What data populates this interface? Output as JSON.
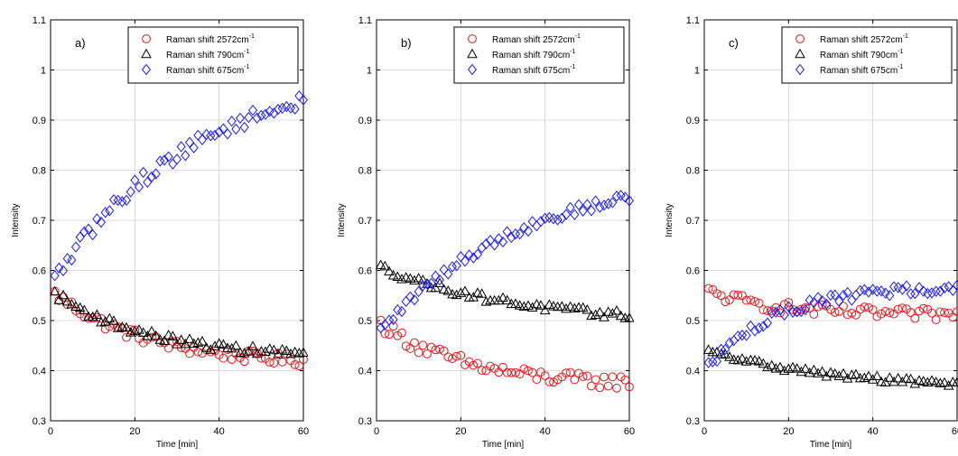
{
  "chart_data": [
    {
      "type": "scatter",
      "panel_label": "a)",
      "xlabel": "Time [min]",
      "ylabel": "Intensity",
      "xlim": [
        0,
        60
      ],
      "ylim": [
        0.3,
        1.1
      ],
      "xticks": [
        0,
        20,
        40,
        60
      ],
      "yticks": [
        0.3,
        0.4,
        0.5,
        0.6,
        0.7,
        0.8,
        0.9,
        1,
        1.1
      ],
      "xtick_labels": [
        "0",
        "20",
        "40",
        "60"
      ],
      "ytick_labels": [
        "0.3",
        "0.4",
        "0.5",
        "0.6",
        "0.7",
        "0.8",
        "0.9",
        "1",
        "1.1"
      ],
      "grid": true,
      "legend_position": "top-right",
      "series": [
        {
          "name": "Raman shift 2572cm",
          "name_sup": "-1",
          "marker": "circle",
          "color": "#e8141a",
          "start": 0.56,
          "end": 0.41,
          "k": 0.045,
          "noise": 0.012
        },
        {
          "name": "Raman shift 790cm",
          "name_sup": "-1",
          "marker": "triangle",
          "color": "#000000",
          "start": 0.56,
          "end": 0.425,
          "k": 0.045,
          "noise": 0.008
        },
        {
          "name": "Raman shift 675cm",
          "name_sup": "-1",
          "marker": "diamond",
          "color": "#1a1aff",
          "start": 0.57,
          "end": 1.01,
          "k": 0.03,
          "noise": 0.014
        }
      ]
    },
    {
      "type": "scatter",
      "panel_label": "b)",
      "xlabel": "Time [min]",
      "ylabel": "Intensity",
      "xlim": [
        0,
        60
      ],
      "ylim": [
        0.3,
        1.1
      ],
      "xticks": [
        0,
        20,
        40,
        60
      ],
      "yticks": [
        0.3,
        0.4,
        0.5,
        0.6,
        0.7,
        0.8,
        0.9,
        1,
        1.1
      ],
      "xtick_labels": [
        "0",
        "20",
        "40",
        "60"
      ],
      "ytick_labels": [
        "0.3",
        "0.4",
        "0.5",
        "0.6",
        "0.7",
        "0.8",
        "0.9",
        "1",
        "1.1"
      ],
      "grid": true,
      "legend_position": "top-right",
      "series": [
        {
          "name": "Raman shift 2572cm",
          "name_sup": "-1",
          "marker": "circle",
          "color": "#e8141a",
          "start": 0.5,
          "end": 0.37,
          "k": 0.05,
          "noise": 0.014
        },
        {
          "name": "Raman shift 790cm",
          "name_sup": "-1",
          "marker": "triangle",
          "color": "#000000",
          "start": 0.61,
          "end": 0.49,
          "k": 0.03,
          "noise": 0.008
        },
        {
          "name": "Raman shift 675cm",
          "name_sup": "-1",
          "marker": "diamond",
          "color": "#1a1aff",
          "start": 0.47,
          "end": 0.8,
          "k": 0.03,
          "noise": 0.01
        }
      ]
    },
    {
      "type": "scatter",
      "panel_label": "c)",
      "xlabel": "Time [min]",
      "ylabel": "Intensity",
      "xlim": [
        0,
        60
      ],
      "ylim": [
        0.3,
        1.1
      ],
      "xticks": [
        0,
        20,
        40,
        60
      ],
      "yticks": [
        0.3,
        0.4,
        0.5,
        0.6,
        0.7,
        0.8,
        0.9,
        1,
        1.1
      ],
      "xtick_labels": [
        "0",
        "20",
        "40",
        "60"
      ],
      "ytick_labels": [
        "0.3",
        "0.4",
        "0.5",
        "0.6",
        "0.7",
        "0.8",
        "0.9",
        "1",
        "1.1"
      ],
      "grid": true,
      "legend_position": "top-right",
      "series": [
        {
          "name": "Raman shift 2572cm",
          "name_sup": "-1",
          "marker": "circle",
          "color": "#e8141a",
          "start": 0.56,
          "end": 0.51,
          "k": 0.06,
          "noise": 0.012
        },
        {
          "name": "Raman shift 790cm",
          "name_sup": "-1",
          "marker": "triangle",
          "color": "#000000",
          "start": 0.44,
          "end": 0.36,
          "k": 0.03,
          "noise": 0.006
        },
        {
          "name": "Raman shift 675cm",
          "name_sup": "-1",
          "marker": "diamond",
          "color": "#1a1aff",
          "start": 0.4,
          "end": 0.57,
          "k": 0.06,
          "noise": 0.01
        }
      ]
    }
  ]
}
